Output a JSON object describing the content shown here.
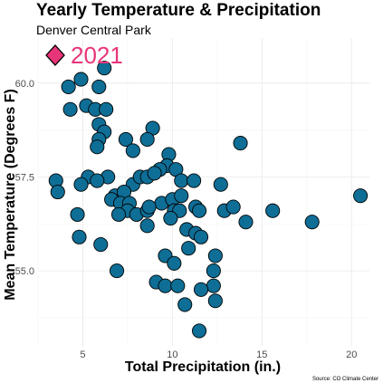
{
  "chart_data": {
    "type": "scatter",
    "title": "Yearly Temperature & Precipitation",
    "subtitle": "Denver Central Park",
    "xlabel": "Total Precipitation (in.)",
    "ylabel": "Mean Temperature (Degrees F)",
    "caption": "Source: CO Climate Center",
    "xlim": [
      2.5,
      21.0
    ],
    "ylim": [
      53.0,
      61.2
    ],
    "x_ticks": [
      5,
      10,
      15,
      20
    ],
    "x_tick_labels": [
      "5",
      "10",
      "15",
      "20"
    ],
    "y_ticks": [
      55.0,
      57.5,
      60.0
    ],
    "y_tick_labels": [
      "55.0",
      "57.5",
      "60.0"
    ],
    "grid": true,
    "legend": {
      "position": "top-left",
      "label": "2021",
      "marker": "diamond",
      "color": "#e8357a"
    },
    "point_color": "#0e6e96",
    "points": [
      {
        "x": 6.2,
        "y": 60.4
      },
      {
        "x": 4.9,
        "y": 60.1
      },
      {
        "x": 4.2,
        "y": 59.9
      },
      {
        "x": 5.9,
        "y": 59.9
      },
      {
        "x": 5.2,
        "y": 59.4
      },
      {
        "x": 5.7,
        "y": 59.3
      },
      {
        "x": 6.3,
        "y": 59.3
      },
      {
        "x": 4.3,
        "y": 59.3
      },
      {
        "x": 5.9,
        "y": 58.9
      },
      {
        "x": 6.2,
        "y": 58.7
      },
      {
        "x": 8.9,
        "y": 58.8
      },
      {
        "x": 5.9,
        "y": 58.5
      },
      {
        "x": 7.4,
        "y": 58.5
      },
      {
        "x": 8.6,
        "y": 58.5
      },
      {
        "x": 5.8,
        "y": 58.3
      },
      {
        "x": 7.8,
        "y": 58.2
      },
      {
        "x": 13.8,
        "y": 58.4
      },
      {
        "x": 9.8,
        "y": 58.1
      },
      {
        "x": 9.7,
        "y": 57.8
      },
      {
        "x": 9.3,
        "y": 57.7
      },
      {
        "x": 10.2,
        "y": 57.7
      },
      {
        "x": 3.5,
        "y": 57.4
      },
      {
        "x": 5.3,
        "y": 57.5
      },
      {
        "x": 4.9,
        "y": 57.3
      },
      {
        "x": 6.4,
        "y": 57.5
      },
      {
        "x": 5.8,
        "y": 57.4
      },
      {
        "x": 7.8,
        "y": 57.3
      },
      {
        "x": 8.2,
        "y": 57.5
      },
      {
        "x": 8.6,
        "y": 57.5
      },
      {
        "x": 9.0,
        "y": 57.6
      },
      {
        "x": 10.5,
        "y": 57.4
      },
      {
        "x": 11.2,
        "y": 57.4
      },
      {
        "x": 12.7,
        "y": 57.3
      },
      {
        "x": 3.6,
        "y": 57.1
      },
      {
        "x": 6.8,
        "y": 57.0
      },
      {
        "x": 7.3,
        "y": 57.1
      },
      {
        "x": 6.6,
        "y": 56.9
      },
      {
        "x": 7.1,
        "y": 56.8
      },
      {
        "x": 7.6,
        "y": 56.8
      },
      {
        "x": 7.5,
        "y": 56.6
      },
      {
        "x": 9.4,
        "y": 56.8
      },
      {
        "x": 10.0,
        "y": 56.9
      },
      {
        "x": 10.5,
        "y": 57.0
      },
      {
        "x": 7.0,
        "y": 56.5
      },
      {
        "x": 8.0,
        "y": 56.5
      },
      {
        "x": 8.6,
        "y": 56.6
      },
      {
        "x": 8.7,
        "y": 56.7
      },
      {
        "x": 10.1,
        "y": 56.6
      },
      {
        "x": 10.4,
        "y": 56.6
      },
      {
        "x": 11.3,
        "y": 56.7
      },
      {
        "x": 11.5,
        "y": 56.6
      },
      {
        "x": 12.9,
        "y": 56.6
      },
      {
        "x": 13.4,
        "y": 56.7
      },
      {
        "x": 14.1,
        "y": 56.3
      },
      {
        "x": 15.6,
        "y": 56.6
      },
      {
        "x": 17.8,
        "y": 56.3
      },
      {
        "x": 20.5,
        "y": 57.0
      },
      {
        "x": 4.7,
        "y": 56.5
      },
      {
        "x": 8.6,
        "y": 56.2
      },
      {
        "x": 9.9,
        "y": 56.4
      },
      {
        "x": 10.8,
        "y": 56.1
      },
      {
        "x": 11.3,
        "y": 56.0
      },
      {
        "x": 4.8,
        "y": 55.9
      },
      {
        "x": 6.0,
        "y": 55.7
      },
      {
        "x": 10.9,
        "y": 55.6
      },
      {
        "x": 11.6,
        "y": 55.9
      },
      {
        "x": 9.6,
        "y": 55.4
      },
      {
        "x": 10.1,
        "y": 55.2
      },
      {
        "x": 12.4,
        "y": 55.4
      },
      {
        "x": 6.9,
        "y": 55.0
      },
      {
        "x": 12.3,
        "y": 55.0
      },
      {
        "x": 9.1,
        "y": 54.7
      },
      {
        "x": 9.6,
        "y": 54.6
      },
      {
        "x": 10.3,
        "y": 54.6
      },
      {
        "x": 12.3,
        "y": 54.6
      },
      {
        "x": 11.6,
        "y": 54.5
      },
      {
        "x": 12.4,
        "y": 54.2
      },
      {
        "x": 10.7,
        "y": 54.1
      },
      {
        "x": 11.5,
        "y": 53.4
      }
    ]
  }
}
